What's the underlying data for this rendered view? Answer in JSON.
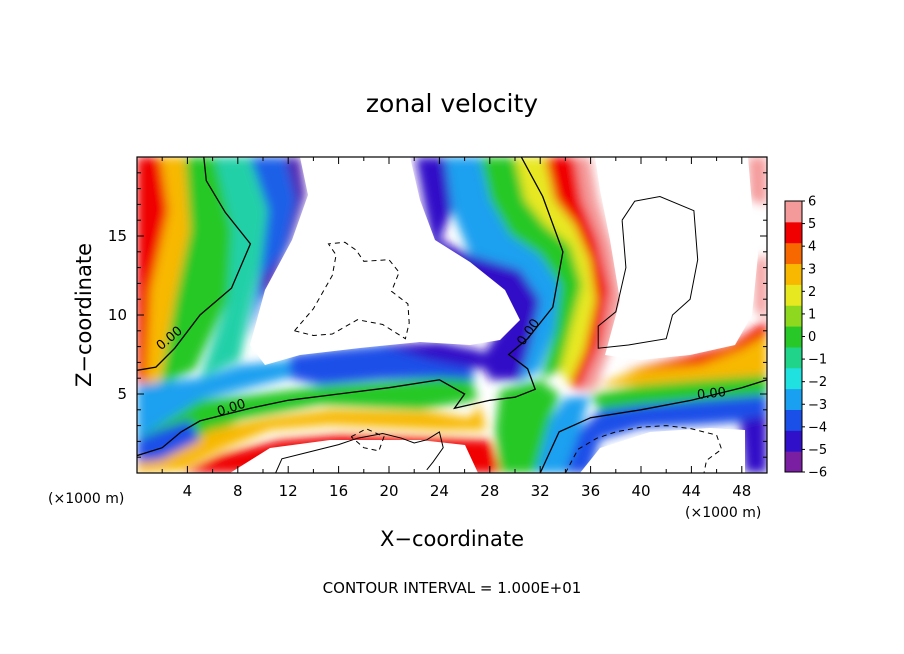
{
  "chart_data": {
    "type": "heatmap",
    "title": "zonal velocity",
    "xlabel": "X−coordinate",
    "ylabel": "Z−coordinate",
    "x_unit_left": "(×1000 m)",
    "x_unit_right": "(×1000 m)",
    "note": "CONTOUR INTERVAL = 1.000E+01",
    "xlim": [
      0,
      50
    ],
    "ylim": [
      0,
      20
    ],
    "x_ticks": [
      4,
      8,
      12,
      16,
      20,
      24,
      28,
      32,
      36,
      40,
      44,
      48
    ],
    "y_ticks": [
      5,
      10,
      15
    ],
    "grid": false,
    "colorbar": {
      "min": -6,
      "max": 6,
      "ticks": [
        "6",
        "5",
        "4",
        "3",
        "2",
        "1",
        "0",
        "−1",
        "−2",
        "−3",
        "−4",
        "−5",
        "−6"
      ],
      "colors": [
        "#7a1fa2",
        "#3010c8",
        "#1a4fe8",
        "#1aa0f0",
        "#20e0e0",
        "#20d48a",
        "#28c828",
        "#8fd820",
        "#e8e820",
        "#f8b800",
        "#f86800",
        "#f00000",
        "#f49a9a"
      ]
    },
    "contour_labels": [
      {
        "text": "0.00",
        "x": 2.6,
        "y": 8.5,
        "rotate": -40
      },
      {
        "text": "0.00",
        "x": 7.5,
        "y": 4.1,
        "rotate": -18
      },
      {
        "text": "0.00",
        "x": 31.1,
        "y": 8.9,
        "rotate": -55
      },
      {
        "text": "0.00",
        "x": 45.6,
        "y": 5.0,
        "rotate": -6
      }
    ],
    "zero_contours": [
      [
        [
          0,
          6.5
        ],
        [
          1.5,
          6.7
        ],
        [
          3,
          7.9
        ],
        [
          5,
          10
        ],
        [
          7.5,
          11.7
        ],
        [
          9,
          14.5
        ],
        [
          7,
          16.5
        ],
        [
          5.5,
          18.5
        ],
        [
          5.3,
          20
        ]
      ],
      [
        [
          0,
          1.1
        ],
        [
          2,
          1.6
        ],
        [
          3.5,
          2.6
        ],
        [
          5,
          3.3
        ],
        [
          7,
          3.7
        ],
        [
          9,
          4.1
        ],
        [
          12,
          4.6
        ],
        [
          16,
          5.0
        ],
        [
          20,
          5.4
        ],
        [
          24,
          5.9
        ],
        [
          26,
          5.0
        ],
        [
          25.2,
          4.1
        ],
        [
          28,
          4.6
        ],
        [
          30,
          4.8
        ],
        [
          31.6,
          5.3
        ],
        [
          31,
          6.6
        ],
        [
          29.5,
          7.5
        ],
        [
          31,
          8.5
        ],
        [
          33,
          10.5
        ],
        [
          33.8,
          14
        ],
        [
          32.2,
          17.5
        ],
        [
          30.5,
          20
        ]
      ],
      [
        [
          32,
          0
        ],
        [
          33.5,
          2.6
        ],
        [
          36,
          3.5
        ],
        [
          40,
          4.0
        ],
        [
          44,
          4.6
        ],
        [
          48,
          5.4
        ],
        [
          50,
          5.9
        ]
      ]
    ],
    "positive_contours": [
      [
        [
          38.5,
          16
        ],
        [
          39.5,
          17.2
        ],
        [
          41.5,
          17.5
        ],
        [
          44.2,
          16.6
        ],
        [
          44.5,
          13.5
        ],
        [
          43.9,
          11
        ],
        [
          42.5,
          10
        ],
        [
          42,
          8.5
        ],
        [
          39,
          8.1
        ],
        [
          36.6,
          7.9
        ],
        [
          36.6,
          9.3
        ],
        [
          38,
          10.2
        ],
        [
          38.8,
          13
        ],
        [
          38.5,
          16
        ]
      ],
      [
        [
          11,
          0
        ],
        [
          11.5,
          0.9
        ],
        [
          13.5,
          1.3
        ],
        [
          16,
          1.8
        ],
        [
          17.5,
          2.2
        ],
        [
          19.5,
          2.5
        ],
        [
          21,
          2.2
        ],
        [
          22,
          1.9
        ],
        [
          23,
          2.1
        ],
        [
          24,
          2.6
        ],
        [
          24.3,
          1.6
        ],
        [
          23.5,
          0.7
        ],
        [
          23,
          0.2
        ]
      ]
    ],
    "negative_contours": [
      [
        [
          12.5,
          9
        ],
        [
          14,
          10.4
        ],
        [
          15.5,
          12.5
        ],
        [
          15.8,
          13.8
        ],
        [
          15.2,
          14.5
        ],
        [
          16.5,
          14.6
        ],
        [
          17.4,
          14.1
        ],
        [
          18,
          13.4
        ],
        [
          20,
          13.5
        ],
        [
          20.8,
          12.7
        ],
        [
          20.2,
          11.5
        ],
        [
          21.5,
          10.7
        ],
        [
          21.6,
          9.5
        ],
        [
          21.3,
          8.5
        ],
        [
          19.5,
          9.4
        ],
        [
          17.5,
          9.7
        ],
        [
          15.5,
          8.8
        ],
        [
          14,
          8.7
        ],
        [
          12.5,
          9
        ]
      ],
      [
        [
          17,
          2.3
        ],
        [
          18.2,
          2.8
        ],
        [
          19.6,
          2.3
        ],
        [
          19.2,
          1.4
        ],
        [
          18,
          1.6
        ],
        [
          17,
          2.3
        ]
      ],
      [
        [
          34,
          0
        ],
        [
          35,
          1.5
        ],
        [
          36.5,
          2.2
        ],
        [
          38,
          2.6
        ],
        [
          40,
          2.9
        ],
        [
          42,
          3.0
        ],
        [
          44,
          2.8
        ],
        [
          46,
          2.4
        ],
        [
          46.4,
          1.5
        ],
        [
          45.2,
          0.8
        ],
        [
          45,
          0
        ]
      ]
    ]
  }
}
